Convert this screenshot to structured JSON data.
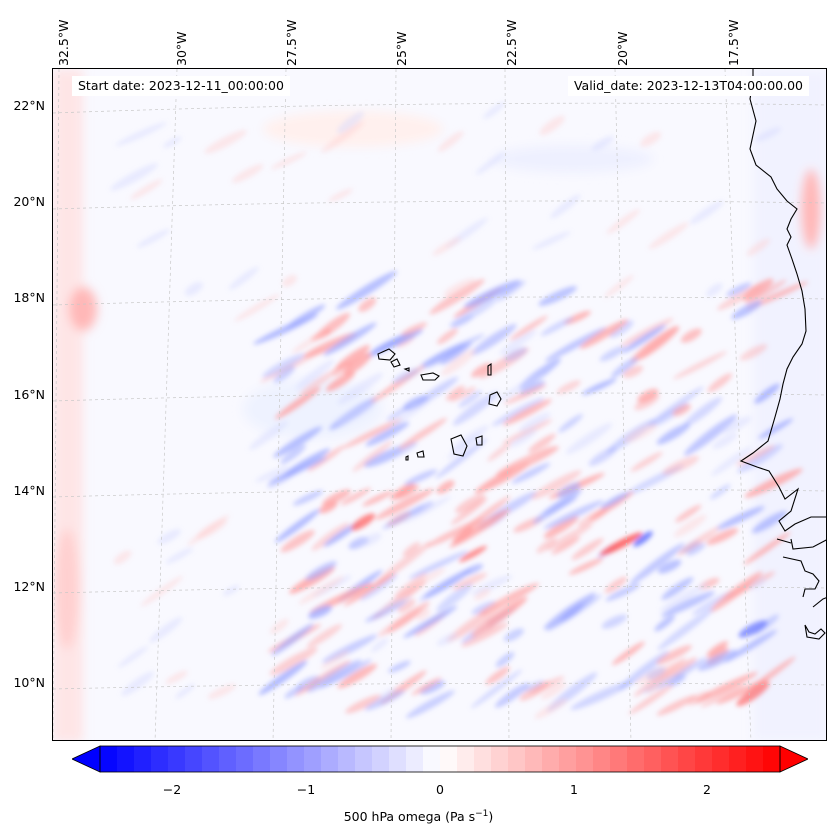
{
  "map": {
    "start_date": "Start date: 2023-12-11_00:00:00",
    "valid_date": "Valid_date: 2023-12-13T04:00:00.00",
    "lon_labels": [
      "32.5°W",
      "30°W",
      "27.5°W",
      "25°W",
      "22.5°W",
      "20°W",
      "17.5°W"
    ],
    "lat_labels": [
      "22°N",
      "20°N",
      "18°N",
      "16°N",
      "14°N",
      "12°N",
      "10°N"
    ],
    "field": "500 hPa omega",
    "colors": {
      "negative": "#0000ff",
      "positive": "#ff0000",
      "neutral": "#ffffff",
      "coast": "#000000",
      "grid": "#b0b0b0"
    }
  },
  "colorbar": {
    "ticks": [
      "−2",
      "−1",
      "0",
      "1",
      "2"
    ],
    "range": [
      -2.7,
      2.7
    ],
    "extend": "both",
    "label_main": "500 hPa omega (Pa s",
    "label_sup": "−1",
    "label_end": ")"
  }
}
